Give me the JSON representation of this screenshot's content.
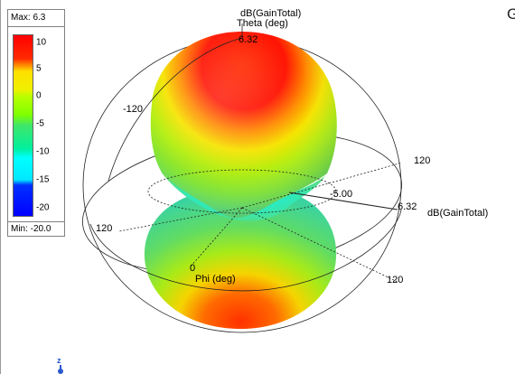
{
  "legend": {
    "max_label": "Max: 6.3",
    "min_label": "Min: -20.0",
    "ticks": [
      "10",
      "5",
      "0",
      "-5",
      "-10",
      "-15",
      "-20"
    ]
  },
  "plot": {
    "quantity_label": "dB(GainTotal)",
    "theta_axis_label": "Theta (deg)",
    "phi_axis_label": "Phi (deg)",
    "max_gain_value": "6.32",
    "ring_value": "-5.00",
    "angle_labels": {
      "upper_left": "-120",
      "left": "120",
      "right_upper": "120",
      "right_lower": "120",
      "phi_zero": "0"
    }
  },
  "corner_glyph": "G",
  "axis_triad": {
    "z": "z"
  },
  "colors": {
    "high": "#ff0000",
    "mid_high": "#ffff00",
    "mid": "#80ff00",
    "mid_low": "#00ff80",
    "low": "#00ffff",
    "min": "#0000ff"
  }
}
